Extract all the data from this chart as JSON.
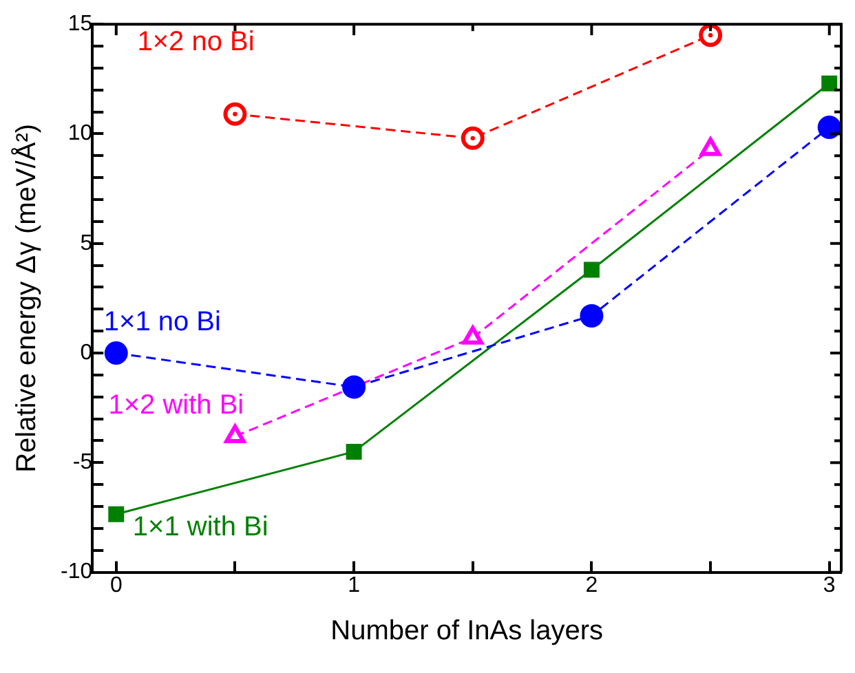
{
  "chart_data": {
    "type": "line",
    "xlabel": "Number of InAs layers",
    "ylabel": "Relative energy Δγ (meV/Å²)",
    "x": [
      0,
      1,
      2,
      3
    ],
    "series": [
      {
        "name": "1×2 no Bi",
        "color": "#ff0000",
        "x": [
          0.5,
          1.5,
          2.5
        ],
        "values": [
          10.9,
          9.8,
          14.5
        ],
        "marker": "circle",
        "line_style": "dashed"
      },
      {
        "name": "1×1 no Bi",
        "color": "#0000ff",
        "values": [
          0,
          -1.55,
          1.7,
          10.3
        ],
        "marker": "circle",
        "line_style": "dashed"
      },
      {
        "name": "1×2 with Bi",
        "color": "#ff00ff",
        "x": [
          0.5,
          1,
          1.5,
          2.5
        ],
        "values": [
          -3.8,
          null,
          0.7,
          9.3
        ],
        "marker": "triangle",
        "line_style": "dashed"
      },
      {
        "name": "1×1 with Bi",
        "color": "#008000",
        "values": [
          -7.35,
          -4.5,
          3.8,
          12.3
        ],
        "marker": "square",
        "line_style": "solid"
      }
    ],
    "xlim": [
      -0.1,
      3.05
    ],
    "xticks": [
      0,
      {
        "value": 0.5,
        "label": null
      },
      1,
      {
        "value": 1.5,
        "label": null
      },
      2,
      {
        "value": 2.5,
        "label": null
      },
      3
    ],
    "ylim": [
      -10,
      15
    ],
    "yticks": [
      -10,
      {
        "value": -9,
        "label": null
      },
      {
        "value": -8,
        "label": null
      },
      {
        "value": -7,
        "label": null
      },
      {
        "value": -6,
        "label": null
      },
      -5,
      {
        "value": -4,
        "label": null
      },
      {
        "value": -3,
        "label": null
      },
      {
        "value": -2,
        "label": null
      },
      {
        "value": -1,
        "label": null
      },
      0,
      {
        "value": 1,
        "label": null
      },
      {
        "value": 2,
        "label": null
      },
      {
        "value": 3,
        "label": null
      },
      {
        "value": 4,
        "label": null
      },
      5,
      {
        "value": 6,
        "label": null
      },
      {
        "value": 7,
        "label": null
      },
      {
        "value": 8,
        "label": null
      },
      {
        "value": 9,
        "label": null
      },
      10,
      {
        "value": 11,
        "label": null
      },
      {
        "value": 12,
        "label": null
      },
      {
        "value": 13,
        "label": null
      },
      {
        "value": 14,
        "label": null
      },
      15
    ],
    "grid": false,
    "legend": false
  }
}
